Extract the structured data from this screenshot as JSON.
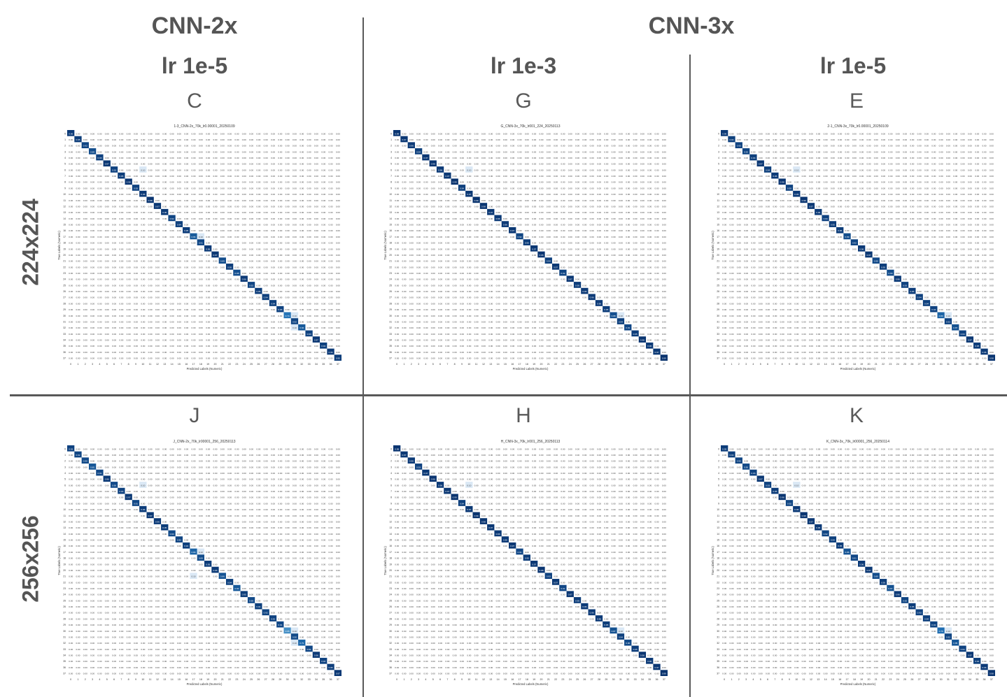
{
  "header": {
    "model_cnn2x": "CNN-2x",
    "model_cnn3x": "CNN-3x",
    "lr_col1": "lr 1e-5",
    "lr_col2": "lr 1e-3",
    "lr_col3": "lr 1e-5"
  },
  "rows": {
    "top": "224x224",
    "bottom": "256x256"
  },
  "colors": {
    "diag_dark": "#08306b",
    "diag_mid": "#2171b5",
    "off_light": "#deebf7",
    "text_grey": "#555555"
  },
  "chart_data": [
    {
      "letter": "C",
      "type": "heatmap",
      "title": "1-3_CNN-2x_70k_lr0.00001_20250109",
      "xlabel": "Predicted Labels (Numeric)",
      "ylabel": "True Labels (Numeric)",
      "classes": 38,
      "diagonal": [
        0.96,
        0.95,
        0.92,
        0.89,
        0.93,
        0.97,
        0.93,
        0.95,
        0.98,
        0.93,
        0.96,
        0.98,
        0.97,
        0.96,
        0.92,
        0.94,
        0.95,
        0.84,
        0.91,
        0.96,
        0.97,
        0.89,
        0.95,
        0.88,
        0.96,
        0.92,
        0.95,
        0.94,
        0.94,
        0.93,
        0.74,
        0.92,
        0.84,
        0.93,
        0.97,
        0.94,
        0.96,
        0.95
      ],
      "light_cells": [
        [
          6,
          10
        ],
        [
          17,
          18
        ],
        [
          30,
          31
        ],
        [
          32,
          31
        ]
      ]
    },
    {
      "letter": "G",
      "type": "heatmap",
      "title": "G_CNN-3x_70k_lr001_224_20250113",
      "xlabel": "Predicted Labels (Numeric)",
      "ylabel": "True Labels (Numeric)",
      "classes": 38,
      "diagonal": [
        0.98,
        0.97,
        0.96,
        0.94,
        0.97,
        0.98,
        0.96,
        0.97,
        0.99,
        0.94,
        0.97,
        0.99,
        0.98,
        0.97,
        0.96,
        0.96,
        0.97,
        0.92,
        0.95,
        0.97,
        0.98,
        0.94,
        0.97,
        0.92,
        0.97,
        0.95,
        0.96,
        0.96,
        0.96,
        0.95,
        0.88,
        0.94,
        0.91,
        0.95,
        0.98,
        0.96,
        0.97,
        0.99
      ],
      "light_cells": [
        [
          6,
          10
        ],
        [
          30,
          31
        ]
      ]
    },
    {
      "letter": "E",
      "type": "heatmap",
      "title": "2-1_CNN-3x_70k_lr0.00001_20250109",
      "xlabel": "Predicted Labels (Numeric)",
      "ylabel": "True Labels (Numeric)",
      "classes": 38,
      "diagonal": [
        0.96,
        0.94,
        0.93,
        0.92,
        0.94,
        0.97,
        0.94,
        0.96,
        0.98,
        0.93,
        0.96,
        0.98,
        0.97,
        0.96,
        0.93,
        0.95,
        0.95,
        0.89,
        0.92,
        0.96,
        0.97,
        0.9,
        0.95,
        0.89,
        0.96,
        0.93,
        0.95,
        0.94,
        0.94,
        0.93,
        0.8,
        0.93,
        0.87,
        0.93,
        0.97,
        0.95,
        0.96,
        0.98
      ],
      "light_cells": [
        [
          6,
          10
        ],
        [
          30,
          31
        ]
      ]
    },
    {
      "letter": "J",
      "type": "heatmap",
      "title": "J_CNN-2x_70k_lr00001_256_20250113",
      "xlabel": "Predicted Labels (Numeric)",
      "ylabel": "True Labels (Numeric)",
      "classes": 38,
      "diagonal": [
        0.93,
        0.92,
        0.9,
        0.85,
        0.91,
        0.96,
        0.9,
        0.93,
        0.97,
        0.91,
        0.95,
        0.97,
        0.96,
        0.95,
        0.9,
        0.92,
        0.94,
        0.8,
        0.89,
        0.95,
        0.96,
        0.86,
        0.94,
        0.84,
        0.95,
        0.9,
        0.94,
        0.92,
        0.93,
        0.91,
        0.65,
        0.9,
        0.79,
        0.91,
        0.96,
        0.93,
        0.95,
        0.97
      ],
      "light_cells": [
        [
          6,
          10
        ],
        [
          17,
          18
        ],
        [
          30,
          31
        ],
        [
          32,
          31
        ],
        [
          21,
          17
        ]
      ]
    },
    {
      "letter": "H",
      "type": "heatmap",
      "title": "H_CNN-3x_70k_lr001_256_20250113",
      "xlabel": "Predicted Labels (Numeric)",
      "ylabel": "True Labels (Numeric)",
      "classes": 38,
      "diagonal": [
        0.98,
        0.97,
        0.96,
        0.93,
        0.97,
        0.98,
        0.96,
        0.97,
        0.99,
        0.94,
        0.97,
        0.99,
        0.98,
        0.97,
        0.96,
        0.96,
        0.97,
        0.91,
        0.95,
        0.97,
        0.98,
        0.93,
        0.97,
        0.91,
        0.97,
        0.95,
        0.96,
        0.96,
        0.96,
        0.95,
        0.87,
        0.94,
        0.9,
        0.95,
        0.98,
        0.96,
        0.97,
        0.99
      ],
      "light_cells": [
        [
          6,
          10
        ],
        [
          30,
          31
        ]
      ]
    },
    {
      "letter": "K",
      "type": "heatmap",
      "title": "K_CNN-3x_70k_lr00001_256_20250114",
      "xlabel": "Predicted Labels (Numeric)",
      "ylabel": "True Labels (Numeric)",
      "classes": 38,
      "diagonal": [
        0.95,
        0.94,
        0.92,
        0.9,
        0.93,
        0.97,
        0.93,
        0.95,
        0.98,
        0.92,
        0.96,
        0.98,
        0.97,
        0.96,
        0.92,
        0.94,
        0.95,
        0.86,
        0.91,
        0.96,
        0.97,
        0.89,
        0.95,
        0.87,
        0.96,
        0.92,
        0.95,
        0.93,
        0.94,
        0.92,
        0.76,
        0.92,
        0.85,
        0.93,
        0.97,
        0.94,
        0.96,
        0.98
      ],
      "light_cells": [
        [
          6,
          10
        ],
        [
          30,
          31
        ]
      ]
    }
  ]
}
